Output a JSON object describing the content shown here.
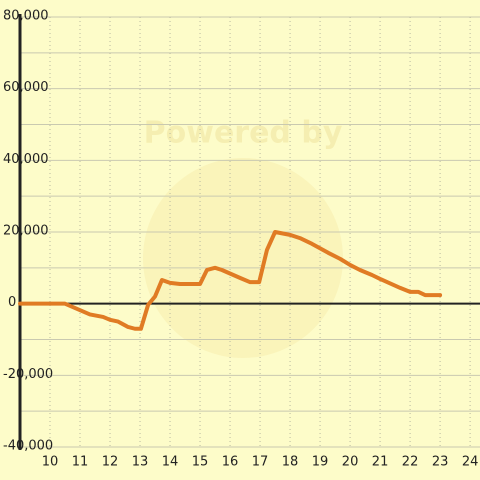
{
  "chart_data": {
    "type": "line",
    "watermark": "Powered by",
    "x": [
      9,
      10.5,
      11.33,
      11.77,
      12,
      12.27,
      12.6,
      12.83,
      13.03,
      13.27,
      13.5,
      13.73,
      14,
      14.33,
      15,
      15.23,
      15.5,
      15.73,
      16.33,
      16.67,
      16.97,
      17.23,
      17.5,
      18,
      18.33,
      18.73,
      19.27,
      19.67,
      20,
      20.33,
      20.73,
      21,
      21.67,
      22,
      22.27,
      22.5,
      23
    ],
    "series": [
      {
        "color": "#e07b24",
        "values": [
          0,
          0,
          -3000,
          -3700,
          -4500,
          -5000,
          -6500,
          -7000,
          -7000,
          -300,
          2000,
          6600,
          5800,
          5500,
          5500,
          9400,
          10000,
          9400,
          7200,
          6000,
          6000,
          15000,
          20000,
          19200,
          18300,
          16700,
          14200,
          12500,
          10800,
          9400,
          8000,
          6900,
          4400,
          3300,
          3300,
          2400,
          2400
        ]
      }
    ],
    "xlim": [
      9,
      24.33
    ],
    "xticks": [
      10,
      11,
      12,
      13,
      14,
      15,
      16,
      17,
      18,
      19,
      20,
      21,
      22,
      23,
      24
    ],
    "ylim": [
      -40000,
      80000
    ],
    "yticks": [
      {
        "value": 80000,
        "label": "80,000"
      },
      {
        "value": 60000,
        "label": "60,000"
      },
      {
        "value": 40000,
        "label": "40,000"
      },
      {
        "value": 20000,
        "label": "20,000"
      },
      0,
      {
        "value": -20000,
        "label": "-20,000"
      },
      {
        "value": -40000,
        "label": "-40,000"
      }
    ],
    "minor_yticks": [
      70000,
      50000,
      30000,
      10000,
      -10000,
      -30000
    ],
    "grid": true
  }
}
